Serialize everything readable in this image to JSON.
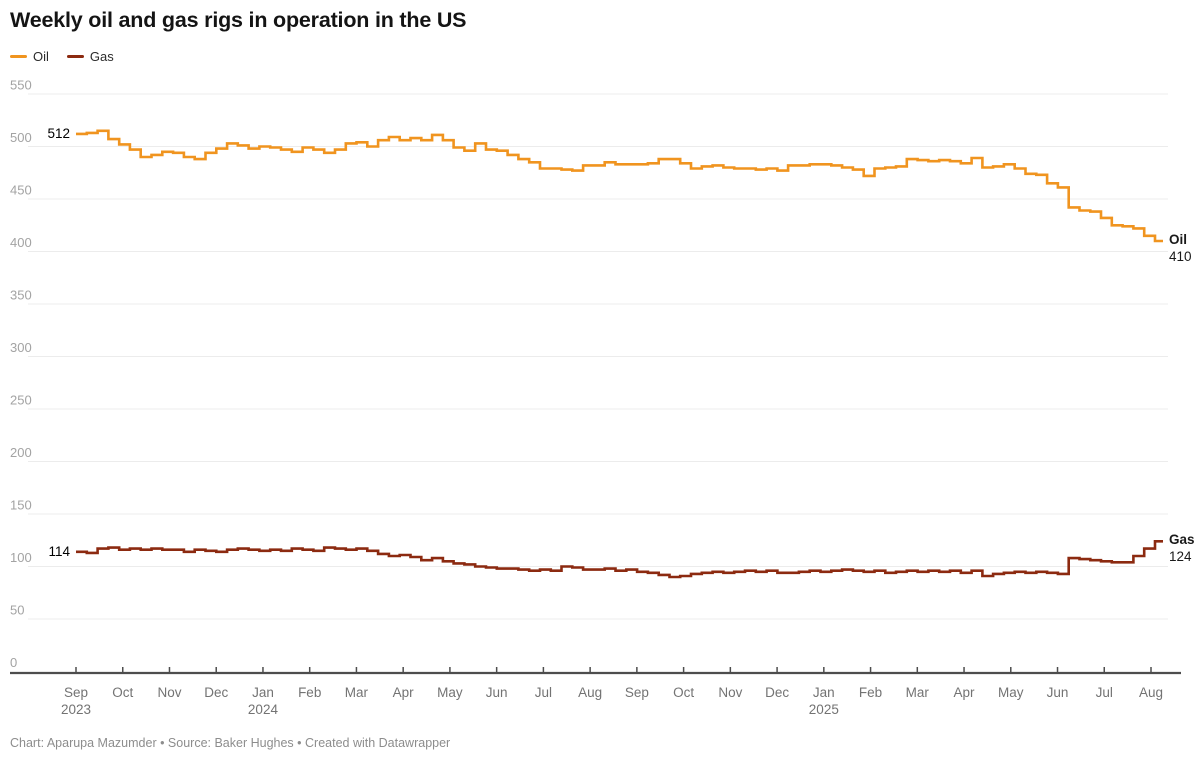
{
  "title": "Weekly oil and gas rigs in operation in the US",
  "legend": {
    "items": [
      {
        "label": "Oil",
        "color": "#F0941F"
      },
      {
        "label": "Gas",
        "color": "#8C2A10"
      }
    ]
  },
  "footer": "Chart: Aparupa Mazumder • Source: Baker Hughes • Created with Datawrapper",
  "colors": {
    "oil": "#F0941F",
    "gas": "#8C2A10",
    "gridline": "#ECECEC",
    "axis": "#4D4D4D",
    "y_tick_label": "#A3A3A3",
    "x_tick_label": "#737373",
    "annotation_text": "#1A1A1A",
    "background": "#FFFFFF"
  },
  "chart_data": {
    "type": "line",
    "line_style": "step-after",
    "title": "Weekly oil and gas rigs in operation in the US",
    "xlabel": "",
    "ylabel": "",
    "x_unit": "week",
    "x_range": [
      "Sep 2023",
      "Aug 2025"
    ],
    "ylim": [
      0,
      550
    ],
    "ytick_step": 50,
    "yticks": [
      0,
      50,
      100,
      150,
      200,
      250,
      300,
      350,
      400,
      450,
      500,
      550
    ],
    "grid": "horizontal",
    "legend_position": "top-left",
    "months": [
      {
        "label": "Sep",
        "year": "2023"
      },
      {
        "label": "Oct"
      },
      {
        "label": "Nov"
      },
      {
        "label": "Dec"
      },
      {
        "label": "Jan",
        "year": "2024"
      },
      {
        "label": "Feb"
      },
      {
        "label": "Mar"
      },
      {
        "label": "Apr"
      },
      {
        "label": "May"
      },
      {
        "label": "Jun"
      },
      {
        "label": "Jul"
      },
      {
        "label": "Aug"
      },
      {
        "label": "Sep"
      },
      {
        "label": "Oct"
      },
      {
        "label": "Nov"
      },
      {
        "label": "Dec"
      },
      {
        "label": "Jan",
        "year": "2025"
      },
      {
        "label": "Feb"
      },
      {
        "label": "Mar"
      },
      {
        "label": "Apr"
      },
      {
        "label": "May"
      },
      {
        "label": "Jun"
      },
      {
        "label": "Jul"
      },
      {
        "label": "Aug"
      }
    ],
    "series": [
      {
        "name": "Oil",
        "color": "#F0941F",
        "start_value": 512,
        "start_label": "512",
        "end_value": 410,
        "end_label": "410",
        "values": [
          512,
          513,
          515,
          507,
          502,
          497,
          490,
          492,
          495,
          494,
          490,
          488,
          494,
          498,
          503,
          501,
          498,
          500,
          499,
          497,
          495,
          499,
          497,
          494,
          497,
          503,
          504,
          500,
          506,
          509,
          506,
          508,
          506,
          511,
          506,
          499,
          496,
          503,
          497,
          496,
          492,
          488,
          485,
          479,
          479,
          478,
          477,
          482,
          482,
          485,
          483,
          483,
          483,
          484,
          488,
          488,
          484,
          479,
          481,
          482,
          480,
          479,
          479,
          478,
          479,
          477,
          482,
          482,
          483,
          483,
          482,
          480,
          478,
          472,
          479,
          480,
          481,
          488,
          487,
          486,
          487,
          486,
          484,
          489,
          480,
          481,
          483,
          479,
          474,
          473,
          465,
          461,
          442,
          439,
          438,
          432,
          425,
          424,
          422,
          415,
          410
        ]
      },
      {
        "name": "Gas",
        "color": "#8C2A10",
        "start_value": 114,
        "start_label": "114",
        "end_value": 124,
        "end_label": "124",
        "values": [
          114,
          113,
          117,
          118,
          116,
          117,
          116,
          117,
          116,
          116,
          114,
          116,
          115,
          114,
          116,
          117,
          116,
          115,
          116,
          115,
          117,
          116,
          115,
          118,
          117,
          116,
          117,
          115,
          112,
          110,
          111,
          109,
          106,
          108,
          105,
          103,
          102,
          100,
          99,
          98,
          98,
          97,
          96,
          97,
          96,
          100,
          99,
          97,
          97,
          98,
          96,
          97,
          95,
          94,
          92,
          90,
          91,
          93,
          94,
          95,
          94,
          95,
          96,
          95,
          96,
          94,
          94,
          95,
          96,
          95,
          96,
          97,
          96,
          95,
          96,
          94,
          95,
          96,
          95,
          96,
          95,
          96,
          94,
          96,
          91,
          93,
          94,
          95,
          94,
          95,
          94,
          93,
          108,
          107,
          106,
          105,
          104,
          104,
          110,
          117,
          124
        ]
      }
    ]
  }
}
